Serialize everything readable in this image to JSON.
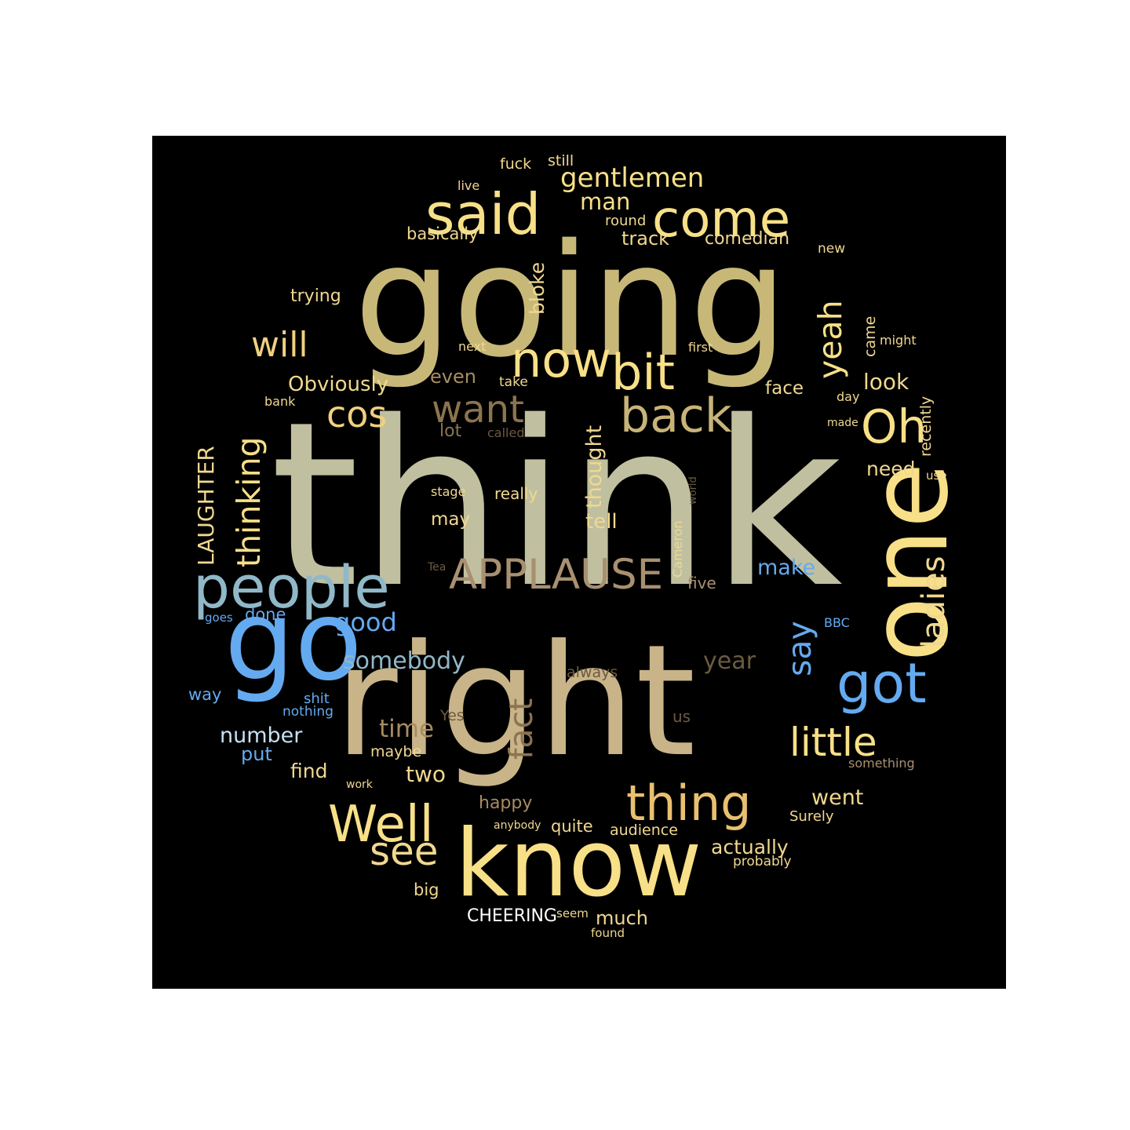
{
  "words": [
    {
      "text": "think",
      "color": "#c0c0a0",
      "orientation": "horizontal"
    },
    {
      "text": "going",
      "color": "#c8b878",
      "orientation": "horizontal"
    },
    {
      "text": "right",
      "color": "#c8b488",
      "orientation": "horizontal"
    },
    {
      "text": "know",
      "color": "#f8e088",
      "orientation": "horizontal"
    },
    {
      "text": "one",
      "color": "#f8e088",
      "orientation": "vertical"
    },
    {
      "text": "go",
      "color": "#64aaf0",
      "orientation": "horizontal"
    },
    {
      "text": "said",
      "color": "#f8e088",
      "orientation": "horizontal"
    },
    {
      "text": "come",
      "color": "#f8e088",
      "orientation": "horizontal"
    },
    {
      "text": "now",
      "color": "#f8e088",
      "orientation": "horizontal"
    },
    {
      "text": "bit",
      "color": "#f8e088",
      "orientation": "horizontal"
    },
    {
      "text": "back",
      "color": "#c8b478",
      "orientation": "horizontal"
    },
    {
      "text": "people",
      "color": "#90b8c8",
      "orientation": "horizontal"
    },
    {
      "text": "thing",
      "color": "#e8c070",
      "orientation": "horizontal"
    },
    {
      "text": "Well",
      "color": "#f8e088",
      "orientation": "horizontal"
    },
    {
      "text": "got",
      "color": "#64aaf0",
      "orientation": "horizontal"
    },
    {
      "text": "little",
      "color": "#f8e088",
      "orientation": "horizontal"
    },
    {
      "text": "APPLAUSE",
      "color": "#a89070",
      "orientation": "horizontal"
    },
    {
      "text": "want",
      "color": "#8c7450",
      "orientation": "horizontal"
    },
    {
      "text": "cos",
      "color": "#f0d080",
      "orientation": "horizontal"
    },
    {
      "text": "will",
      "color": "#f0d080",
      "orientation": "horizontal"
    },
    {
      "text": "Oh",
      "color": "#f8e088",
      "orientation": "horizontal"
    },
    {
      "text": "yeah",
      "color": "#f8e088",
      "orientation": "vertical"
    },
    {
      "text": "thinking",
      "color": "#f8e088",
      "orientation": "vertical"
    },
    {
      "text": "ladies",
      "color": "#f0d890",
      "orientation": "vertical"
    },
    {
      "text": "say",
      "color": "#64aaf0",
      "orientation": "vertical"
    },
    {
      "text": "fact",
      "color": "#8c7450",
      "orientation": "vertical"
    },
    {
      "text": "see",
      "color": "#f0d890",
      "orientation": "horizontal"
    },
    {
      "text": "gentlemen",
      "color": "#f8e088",
      "orientation": "horizontal"
    },
    {
      "text": "man",
      "color": "#f8e088",
      "orientation": "horizontal"
    },
    {
      "text": "track",
      "color": "#f0d890",
      "orientation": "horizontal"
    },
    {
      "text": "comedian",
      "color": "#f0d890",
      "orientation": "horizontal"
    },
    {
      "text": "basically",
      "color": "#f0d890",
      "orientation": "horizontal"
    },
    {
      "text": "round",
      "color": "#f0d890",
      "orientation": "horizontal"
    },
    {
      "text": "fuck",
      "color": "#f0d890",
      "orientation": "horizontal"
    },
    {
      "text": "still",
      "color": "#f0d890",
      "orientation": "horizontal"
    },
    {
      "text": "live",
      "color": "#f0d890",
      "orientation": "horizontal"
    },
    {
      "text": "new",
      "color": "#f0d890",
      "orientation": "horizontal"
    },
    {
      "text": "trying",
      "color": "#f0d890",
      "orientation": "horizontal"
    },
    {
      "text": "bloke",
      "color": "#f0d890",
      "orientation": "vertical"
    },
    {
      "text": "came",
      "color": "#f0d890",
      "orientation": "vertical"
    },
    {
      "text": "might",
      "color": "#f0d890",
      "orientation": "horizontal"
    },
    {
      "text": "next",
      "color": "#f0d890",
      "orientation": "horizontal"
    },
    {
      "text": "first",
      "color": "#f0d890",
      "orientation": "horizontal"
    },
    {
      "text": "Obviously",
      "color": "#f0d890",
      "orientation": "horizontal"
    },
    {
      "text": "even",
      "color": "#a88c60",
      "orientation": "horizontal"
    },
    {
      "text": "take",
      "color": "#f0d890",
      "orientation": "horizontal"
    },
    {
      "text": "face",
      "color": "#f0d890",
      "orientation": "horizontal"
    },
    {
      "text": "look",
      "color": "#f0d890",
      "orientation": "horizontal"
    },
    {
      "text": "day",
      "color": "#f0d890",
      "orientation": "horizontal"
    },
    {
      "text": "bank",
      "color": "#f0d890",
      "orientation": "horizontal"
    },
    {
      "text": "recently",
      "color": "#f0d890",
      "orientation": "vertical"
    },
    {
      "text": "made",
      "color": "#f0d890",
      "orientation": "horizontal"
    },
    {
      "text": "lot",
      "color": "#8c7450",
      "orientation": "horizontal"
    },
    {
      "text": "called",
      "color": "#6c5a40",
      "orientation": "horizontal"
    },
    {
      "text": "thought",
      "color": "#f0d890",
      "orientation": "vertical"
    },
    {
      "text": "need",
      "color": "#f0d890",
      "orientation": "horizontal"
    },
    {
      "text": "use",
      "color": "#f0d890",
      "orientation": "horizontal"
    },
    {
      "text": "LAUGHTER",
      "color": "#f0d890",
      "orientation": "vertical"
    },
    {
      "text": "stage",
      "color": "#f0d890",
      "orientation": "horizontal"
    },
    {
      "text": "really",
      "color": "#f0d890",
      "orientation": "horizontal"
    },
    {
      "text": "world",
      "color": "#6c5a40",
      "orientation": "vertical"
    },
    {
      "text": "may",
      "color": "#f0d890",
      "orientation": "horizontal"
    },
    {
      "text": "tell",
      "color": "#f0d890",
      "orientation": "horizontal"
    },
    {
      "text": "Cameron",
      "color": "#f0d890",
      "orientation": "vertical"
    },
    {
      "text": "Tea",
      "color": "#6c5a40",
      "orientation": "horizontal"
    },
    {
      "text": "make",
      "color": "#64aaf0",
      "orientation": "horizontal"
    },
    {
      "text": "five",
      "color": "#a89070",
      "orientation": "horizontal"
    },
    {
      "text": "goes",
      "color": "#64aaf0",
      "orientation": "horizontal"
    },
    {
      "text": "done",
      "color": "#64aaf0",
      "orientation": "horizontal"
    },
    {
      "text": "good",
      "color": "#64aaf0",
      "orientation": "horizontal"
    },
    {
      "text": "BBC",
      "color": "#64aaf0",
      "orientation": "horizontal"
    },
    {
      "text": "somebody",
      "color": "#90b8c8",
      "orientation": "horizontal"
    },
    {
      "text": "year",
      "color": "#6c5a40",
      "orientation": "horizontal"
    },
    {
      "text": "always",
      "color": "#6c5a40",
      "orientation": "horizontal"
    },
    {
      "text": "way",
      "color": "#64aaf0",
      "orientation": "horizontal"
    },
    {
      "text": "shit",
      "color": "#64aaf0",
      "orientation": "horizontal"
    },
    {
      "text": "nothing",
      "color": "#64aaf0",
      "orientation": "horizontal"
    },
    {
      "text": "Yes",
      "color": "#6c5a40",
      "orientation": "horizontal"
    },
    {
      "text": "us",
      "color": "#6c5a40",
      "orientation": "horizontal"
    },
    {
      "text": "time",
      "color": "#a88c60",
      "orientation": "horizontal"
    },
    {
      "text": "number",
      "color": "#c8e0f0",
      "orientation": "horizontal"
    },
    {
      "text": "put",
      "color": "#64aaf0",
      "orientation": "horizontal"
    },
    {
      "text": "maybe",
      "color": "#f0d890",
      "orientation": "horizontal"
    },
    {
      "text": "something",
      "color": "#a89070",
      "orientation": "horizontal"
    },
    {
      "text": "find",
      "color": "#f0d890",
      "orientation": "horizontal"
    },
    {
      "text": "two",
      "color": "#f0d890",
      "orientation": "horizontal"
    },
    {
      "text": "work",
      "color": "#f0d890",
      "orientation": "horizontal"
    },
    {
      "text": "went",
      "color": "#f0d890",
      "orientation": "horizontal"
    },
    {
      "text": "happy",
      "color": "#a88c60",
      "orientation": "horizontal"
    },
    {
      "text": "Surely",
      "color": "#f0d890",
      "orientation": "horizontal"
    },
    {
      "text": "anybody",
      "color": "#f0d890",
      "orientation": "horizontal"
    },
    {
      "text": "quite",
      "color": "#f0d890",
      "orientation": "horizontal"
    },
    {
      "text": "audience",
      "color": "#f0d890",
      "orientation": "horizontal"
    },
    {
      "text": "actually",
      "color": "#f0d890",
      "orientation": "horizontal"
    },
    {
      "text": "probably",
      "color": "#f0d890",
      "orientation": "horizontal"
    },
    {
      "text": "big",
      "color": "#f0d890",
      "orientation": "horizontal"
    },
    {
      "text": "CHEERING",
      "color": "#ffffff",
      "orientation": "horizontal"
    },
    {
      "text": "seem",
      "color": "#f0d890",
      "orientation": "horizontal"
    },
    {
      "text": "much",
      "color": "#f0d890",
      "orientation": "horizontal"
    },
    {
      "text": "found",
      "color": "#f0d890",
      "orientation": "horizontal"
    }
  ]
}
